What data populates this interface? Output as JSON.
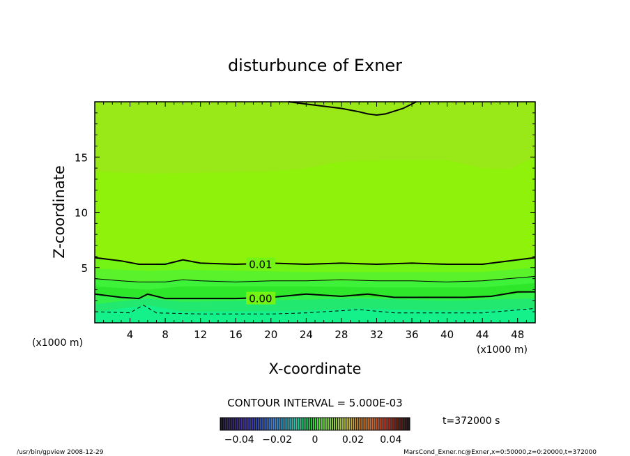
{
  "chart_data": {
    "type": "heatmap",
    "title": "disturbunce of Exner",
    "xlabel": "X-coordinate",
    "ylabel": "Z-coordinate",
    "xlim": [
      0,
      50
    ],
    "ylim": [
      0,
      20
    ],
    "x_unit_left": "(x1000 m)",
    "x_unit_right": "(x1000 m)",
    "x_ticks": [
      {
        "v": 4,
        "label": "4"
      },
      {
        "v": 8,
        "label": "8"
      },
      {
        "v": 12,
        "label": "12"
      },
      {
        "v": 16,
        "label": "16"
      },
      {
        "v": 20,
        "label": "20"
      },
      {
        "v": 24,
        "label": "24"
      },
      {
        "v": 28,
        "label": "28"
      },
      {
        "v": 32,
        "label": "32"
      },
      {
        "v": 36,
        "label": "36"
      },
      {
        "v": 40,
        "label": "40"
      },
      {
        "v": 44,
        "label": "44"
      },
      {
        "v": 48,
        "label": "48"
      }
    ],
    "y_ticks": [
      {
        "v": 5,
        "label": "5"
      },
      {
        "v": 10,
        "label": "10"
      },
      {
        "v": 15,
        "label": "15"
      }
    ],
    "fill_bands": [
      {
        "lower": [
          [
            0,
            1.0
          ],
          [
            6,
            1.6
          ],
          [
            10,
            1.0
          ],
          [
            24,
            1.1
          ],
          [
            30,
            1.3
          ],
          [
            40,
            1.1
          ],
          [
            50,
            1.3
          ]
        ],
        "color": "#22e870"
      },
      {
        "lower": [
          [
            0,
            1.7
          ],
          [
            6,
            2.2
          ],
          [
            10,
            1.9
          ],
          [
            24,
            2.1
          ],
          [
            30,
            2.2
          ],
          [
            40,
            2.0
          ],
          [
            50,
            2.2
          ]
        ],
        "color": "#33f04a"
      },
      {
        "lower": [
          [
            0,
            2.6
          ],
          [
            5,
            2.3
          ],
          [
            6,
            2.5
          ],
          [
            8,
            2.2
          ],
          [
            16,
            2.2
          ],
          [
            24,
            2.6
          ],
          [
            32,
            2.3
          ],
          [
            44,
            2.3
          ],
          [
            50,
            2.8
          ]
        ],
        "color": "#2ee62a"
      },
      {
        "lower": [
          [
            0,
            3.3
          ],
          [
            6,
            3.0
          ],
          [
            10,
            3.3
          ],
          [
            24,
            3.3
          ],
          [
            32,
            3.2
          ],
          [
            44,
            3.2
          ],
          [
            50,
            3.6
          ]
        ],
        "color": "#3ef23a"
      },
      {
        "lower": [
          [
            0,
            4.0
          ],
          [
            5,
            3.7
          ],
          [
            10,
            3.9
          ],
          [
            24,
            3.8
          ],
          [
            32,
            3.8
          ],
          [
            44,
            3.8
          ],
          [
            50,
            4.2
          ]
        ],
        "color": "#5af22a"
      },
      {
        "lower": [
          [
            0,
            4.9
          ],
          [
            6,
            4.7
          ],
          [
            10,
            4.8
          ],
          [
            24,
            4.6
          ],
          [
            32,
            4.6
          ],
          [
            44,
            4.6
          ],
          [
            50,
            5.0
          ]
        ],
        "color": "#74f414"
      },
      {
        "lower": [
          [
            0,
            5.9
          ],
          [
            6,
            5.3
          ],
          [
            10,
            5.7
          ],
          [
            14,
            5.3
          ],
          [
            24,
            5.3
          ],
          [
            28,
            5.4
          ],
          [
            32,
            5.3
          ],
          [
            36,
            5.3
          ],
          [
            44,
            5.3
          ],
          [
            50,
            5.9
          ]
        ],
        "color": "#8ff20a"
      },
      {
        "lower": [
          [
            0,
            13.7
          ],
          [
            6,
            13.5
          ],
          [
            20,
            13.7
          ],
          [
            24,
            14.0
          ],
          [
            28,
            14.6
          ],
          [
            32,
            14.7
          ],
          [
            40,
            14.7
          ],
          [
            44,
            14.0
          ],
          [
            47,
            13.9
          ],
          [
            50,
            15.0
          ]
        ],
        "color": "#99e818"
      }
    ],
    "contours": [
      {
        "level": 0.01,
        "style": "thick",
        "label": "0.01",
        "label_x": 17.5,
        "points": [
          [
            0,
            5.9
          ],
          [
            3,
            5.6
          ],
          [
            5,
            5.3
          ],
          [
            8,
            5.3
          ],
          [
            10,
            5.7
          ],
          [
            12,
            5.4
          ],
          [
            16,
            5.3
          ],
          [
            20,
            5.4
          ],
          [
            24,
            5.3
          ],
          [
            28,
            5.4
          ],
          [
            32,
            5.3
          ],
          [
            36,
            5.4
          ],
          [
            40,
            5.3
          ],
          [
            44,
            5.3
          ],
          [
            47,
            5.6
          ],
          [
            50,
            5.9
          ]
        ]
      },
      {
        "level": 0.005,
        "style": "thin",
        "points": [
          [
            0,
            4.0
          ],
          [
            3,
            3.8
          ],
          [
            5,
            3.7
          ],
          [
            8,
            3.7
          ],
          [
            10,
            3.9
          ],
          [
            12,
            3.8
          ],
          [
            16,
            3.7
          ],
          [
            20,
            3.8
          ],
          [
            24,
            3.8
          ],
          [
            28,
            3.9
          ],
          [
            32,
            3.8
          ],
          [
            36,
            3.8
          ],
          [
            40,
            3.7
          ],
          [
            44,
            3.8
          ],
          [
            47,
            4.0
          ],
          [
            50,
            4.2
          ]
        ]
      },
      {
        "level": 0.0,
        "style": "thick",
        "label": "0.00",
        "label_x": 17.5,
        "points": [
          [
            0,
            2.6
          ],
          [
            3,
            2.3
          ],
          [
            5,
            2.2
          ],
          [
            6,
            2.6
          ],
          [
            8,
            2.2
          ],
          [
            12,
            2.2
          ],
          [
            16,
            2.2
          ],
          [
            20,
            2.3
          ],
          [
            24,
            2.6
          ],
          [
            28,
            2.4
          ],
          [
            31,
            2.6
          ],
          [
            34,
            2.3
          ],
          [
            38,
            2.3
          ],
          [
            42,
            2.3
          ],
          [
            45,
            2.4
          ],
          [
            48,
            2.8
          ],
          [
            50,
            2.8
          ]
        ]
      },
      {
        "level": -0.005,
        "style": "dashed",
        "points": [
          [
            0,
            1.0
          ],
          [
            4,
            0.9
          ],
          [
            5.5,
            1.6
          ],
          [
            7,
            0.9
          ],
          [
            12,
            0.8
          ],
          [
            20,
            0.8
          ],
          [
            24,
            0.9
          ],
          [
            30,
            1.2
          ],
          [
            34,
            0.9
          ],
          [
            40,
            0.9
          ],
          [
            44,
            0.9
          ],
          [
            47,
            1.1
          ],
          [
            50,
            1.3
          ]
        ]
      },
      {
        "level": 0.015,
        "style": "thick",
        "points": [
          [
            22,
            20.0
          ],
          [
            24,
            19.8
          ],
          [
            28,
            19.4
          ],
          [
            30,
            19.1
          ],
          [
            31,
            18.9
          ],
          [
            32,
            18.8
          ],
          [
            33,
            18.9
          ],
          [
            35,
            19.4
          ],
          [
            36.5,
            20.0
          ]
        ]
      }
    ],
    "contour_interval": "CONTOUR INTERVAL = 5.000E-03",
    "time_label": "t=372000 s",
    "colorbar": {
      "ticks": [
        {
          "v": -0.04,
          "label": "−0.04"
        },
        {
          "v": -0.02,
          "label": "−0.02"
        },
        {
          "v": 0.0,
          "label": "0"
        },
        {
          "v": 0.02,
          "label": "0.02"
        },
        {
          "v": 0.04,
          "label": "0.04"
        }
      ],
      "range": [
        -0.05,
        0.05
      ]
    },
    "footer_left": "/usr/bin/gpview  2008-12-29",
    "footer_right": "MarsCond_Exner.nc@Exner,x=0:50000,z=0:20000,t=372000"
  }
}
